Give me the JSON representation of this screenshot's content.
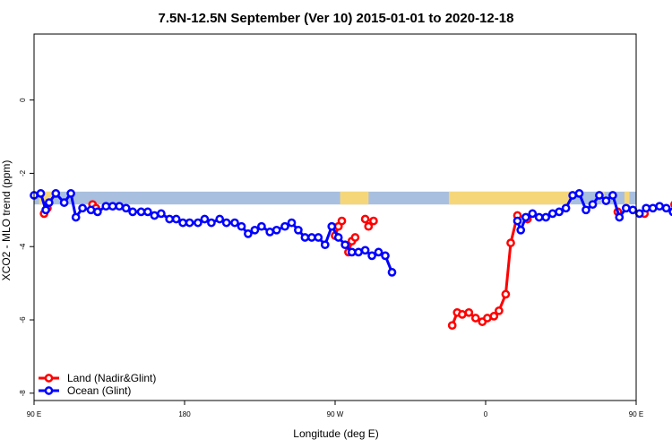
{
  "chart_data": {
    "type": "line",
    "title": "7.5N-12.5N September (Ver 10)   2015-01-01 to 2020-12-18",
    "xlabel": "Longitude (deg E)",
    "ylabel": "XCO2 - MLO trend (ppm)",
    "xlim": [
      90,
      450
    ],
    "ylim": [
      -8.2,
      1.8
    ],
    "xticks": [
      {
        "value": 90,
        "label": "90 E"
      },
      {
        "value": 180,
        "label": "180"
      },
      {
        "value": 270,
        "label": "90 W"
      },
      {
        "value": 360,
        "label": "0"
      },
      {
        "value": 450,
        "label": "90 E"
      },
      {
        "value": 540,
        "label": "180"
      }
    ],
    "yticks": [
      {
        "value": 0,
        "label": "0"
      },
      {
        "value": -2,
        "label": "-2"
      },
      {
        "value": -4,
        "label": "-4"
      },
      {
        "value": -6,
        "label": "-6"
      },
      {
        "value": -8,
        "label": "-8"
      }
    ],
    "land_mask_band": {
      "y_top": -2.5,
      "y_bottom": -2.85,
      "ocean_color": "#a8bfdf",
      "land_color": "#f5d77a",
      "land_ranges": [
        [
          93,
          101
        ],
        [
          273,
          290
        ],
        [
          338,
          411
        ],
        [
          429,
          431
        ],
        [
          443,
          446
        ],
        [
          463,
          467
        ],
        [
          477,
          479
        ]
      ]
    },
    "legend_position": "bottom-left",
    "series": [
      {
        "name": "Land (Nadir&Glint)",
        "color": "#ff0000",
        "segments": [
          [
            [
              96,
              -3.1
            ],
            [
              98,
              -2.95
            ]
          ],
          [
            [
              125,
              -2.85
            ],
            [
              127,
              -2.95
            ]
          ],
          [
            [
              270,
              -3.7
            ],
            [
              272,
              -3.45
            ],
            [
              274,
              -3.3
            ]
          ],
          [
            [
              278,
              -4.15
            ],
            [
              280,
              -3.85
            ],
            [
              282,
              -3.75
            ]
          ],
          [
            [
              288,
              -3.25
            ],
            [
              290,
              -3.45
            ],
            [
              293,
              -3.3
            ]
          ],
          [
            [
              340,
              -6.15
            ],
            [
              343,
              -5.8
            ],
            [
              346,
              -5.85
            ],
            [
              350,
              -5.8
            ],
            [
              354,
              -5.95
            ],
            [
              358,
              -6.05
            ],
            [
              361,
              -5.95
            ],
            [
              365,
              -5.9
            ],
            [
              368,
              -5.75
            ],
            [
              372,
              -5.3
            ],
            [
              375,
              -3.9
            ],
            [
              379,
              -3.15
            ]
          ],
          [
            [
              385,
              -3.25
            ]
          ],
          [
            [
              439,
              -3.05
            ]
          ],
          [
            [
              455,
              -3.1
            ]
          ],
          [
            [
              473,
              -2.85
            ],
            [
              474,
              -2.9
            ]
          ]
        ]
      },
      {
        "name": "Ocean (Glint)",
        "color": "#0000ff",
        "segments": [
          [
            [
              90,
              -2.6
            ],
            [
              94,
              -2.55
            ],
            [
              97,
              -3.0
            ],
            [
              99,
              -2.8
            ],
            [
              103,
              -2.55
            ],
            [
              108,
              -2.8
            ],
            [
              112,
              -2.55
            ],
            [
              115,
              -3.2
            ],
            [
              119,
              -2.95
            ],
            [
              124,
              -3.0
            ],
            [
              128,
              -3.05
            ],
            [
              133,
              -2.9
            ],
            [
              137,
              -2.9
            ],
            [
              141,
              -2.9
            ],
            [
              145,
              -2.95
            ],
            [
              149,
              -3.05
            ],
            [
              154,
              -3.05
            ],
            [
              158,
              -3.05
            ],
            [
              162,
              -3.15
            ],
            [
              166,
              -3.1
            ],
            [
              171,
              -3.25
            ],
            [
              175,
              -3.25
            ],
            [
              179,
              -3.35
            ],
            [
              183,
              -3.35
            ],
            [
              188,
              -3.35
            ],
            [
              192,
              -3.25
            ],
            [
              196,
              -3.35
            ],
            [
              201,
              -3.25
            ],
            [
              205,
              -3.35
            ],
            [
              210,
              -3.35
            ],
            [
              214,
              -3.45
            ],
            [
              218,
              -3.65
            ],
            [
              222,
              -3.55
            ],
            [
              226,
              -3.45
            ],
            [
              231,
              -3.6
            ],
            [
              235,
              -3.55
            ],
            [
              240,
              -3.45
            ],
            [
              244,
              -3.35
            ],
            [
              248,
              -3.55
            ],
            [
              252,
              -3.75
            ],
            [
              256,
              -3.75
            ],
            [
              260,
              -3.75
            ],
            [
              264,
              -3.95
            ],
            [
              268,
              -3.45
            ],
            [
              272,
              -3.75
            ],
            [
              276,
              -3.95
            ],
            [
              280,
              -4.15
            ],
            [
              284,
              -4.15
            ],
            [
              288,
              -4.1
            ],
            [
              292,
              -4.25
            ],
            [
              296,
              -4.15
            ],
            [
              300,
              -4.25
            ],
            [
              304,
              -4.7
            ]
          ]
        ]
      },
      {
        "name": "",
        "color": "#0000ff",
        "segments": [
          [
            [
              379,
              -3.3
            ],
            [
              381,
              -3.55
            ],
            [
              384,
              -3.2
            ],
            [
              388,
              -3.1
            ],
            [
              392,
              -3.2
            ],
            [
              396,
              -3.2
            ],
            [
              400,
              -3.1
            ],
            [
              404,
              -3.05
            ],
            [
              408,
              -2.95
            ],
            [
              412,
              -2.6
            ],
            [
              416,
              -2.55
            ],
            [
              420,
              -3.0
            ],
            [
              424,
              -2.85
            ],
            [
              428,
              -2.6
            ],
            [
              432,
              -2.75
            ],
            [
              436,
              -2.6
            ],
            [
              440,
              -3.2
            ],
            [
              444,
              -2.95
            ],
            [
              448,
              -3.0
            ],
            [
              452,
              -3.1
            ],
            [
              456,
              -2.95
            ],
            [
              460,
              -2.95
            ],
            [
              464,
              -2.9
            ],
            [
              468,
              -2.95
            ],
            [
              472,
              -3.05
            ],
            [
              476,
              -3.05
            ],
            [
              480,
              -3.1
            ]
          ]
        ]
      }
    ]
  }
}
